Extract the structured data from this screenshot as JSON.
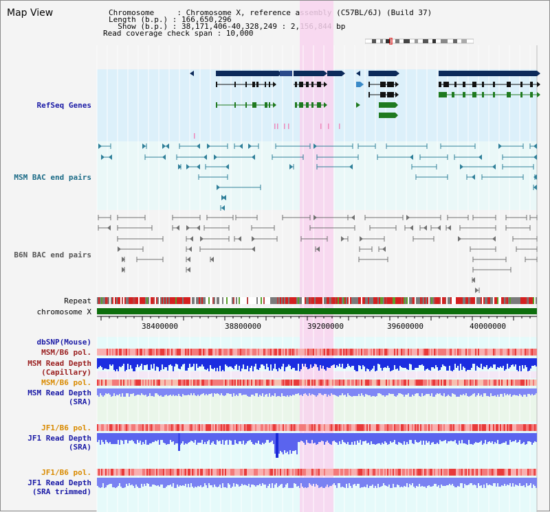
{
  "app_title": "Map View",
  "header": {
    "line1": "Chromosome     : Chromosome X, reference assembly (C57BL/6J) (Build 37)",
    "line2": "Length (b.p.) : 166,650,296",
    "line3": "  Show (b.p.) : 38,171,406-40,328,249 : 2,156,844 bp",
    "line4": "Read coverage check span : 10,000"
  },
  "tracks": {
    "refseq": "RefSeq Genes",
    "msm_bac": "MSM BAC end pairs",
    "b6n_bac": "B6N BAC end pairs",
    "repeat": "Repeat",
    "chromosome": "chromosome X",
    "dbsnp": "dbSNP(Mouse)",
    "msm_b6_pol_1": "MSM/B6 pol.",
    "msm_depth_cap_1": "MSM Read Depth",
    "msm_depth_cap_2": "(Capillary)",
    "msm_b6_pol_2": "MSM/B6 pol.",
    "msm_depth_sra_1": "MSM Read Depth",
    "msm_depth_sra_2": "(SRA)",
    "jf1_b6_pol_1": "JF1/B6 pol.",
    "jf1_depth_sra_1": "JF1 Read Depth",
    "jf1_depth_sra_2": "(SRA)",
    "jf1_b6_pol_2": "JF1/B6 pol.",
    "jf1_depth_trim_1": "JF1 Read Depth",
    "jf1_depth_trim_2": "(SRA trimmed)"
  },
  "axis_ticks": [
    "38400000",
    "38800000",
    "39200000",
    "39600000",
    "40000000"
  ],
  "colors": {
    "highlight": "#f8d4ee",
    "refseq_bg": "#dcf0fa",
    "msm_bg": "#eaf8f8",
    "b6n_bg": "#f4f4f4",
    "gene_navy": "#0c2a5a",
    "gene_green": "#1f7a1f",
    "msm_line": "#2f7f99",
    "b6n_line": "#707070",
    "chrom_green": "#0d6e0d",
    "depth_blue": "#1b2de0",
    "depth_light": "#7f86f5"
  }
}
